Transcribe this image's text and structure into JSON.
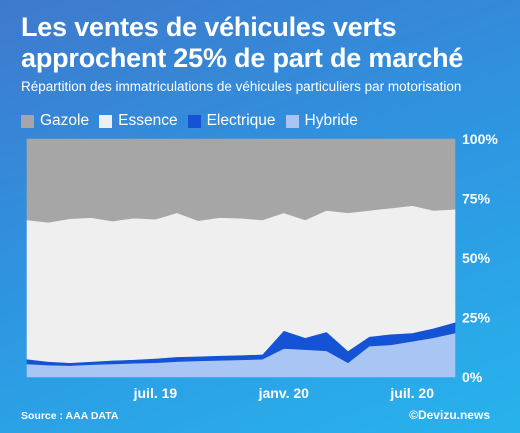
{
  "header": {
    "title_line1": "Les ventes de véhicules verts",
    "title_line2": "approchent 25% de part de marché",
    "subtitle": "Répartition des immatriculations de véhicules particuliers par motorisation"
  },
  "footer": {
    "source": "Source : AAA DATA",
    "credit": "©Devizu.news"
  },
  "colors": {
    "gazole": "#a6a6a6",
    "essence": "#efefef",
    "electrique": "#1452d6",
    "hybride": "#a9c5f3"
  },
  "chart_data": {
    "type": "area",
    "stacked": true,
    "title": "Les ventes de véhicules verts approchent 25% de part de marché",
    "subtitle": "Répartition des immatriculations de véhicules particuliers par motorisation",
    "x_tick_labels": [
      "juil. 19",
      "janv. 20",
      "juil. 20"
    ],
    "x_tick_index": [
      6,
      12,
      18
    ],
    "y_tick_labels": [
      "0%",
      "25%",
      "50%",
      "75%",
      "100%"
    ],
    "ylim": [
      0,
      100
    ],
    "y_axis_side": "right",
    "legend_position": "top",
    "grid": false,
    "x": [
      0,
      1,
      2,
      3,
      4,
      5,
      6,
      7,
      8,
      9,
      10,
      11,
      12,
      13,
      14,
      15,
      16,
      17,
      18,
      19,
      20
    ],
    "series": [
      {
        "name": "Hybride",
        "values": [
          5.5,
          5.0,
          4.8,
          5.2,
          5.5,
          5.8,
          6.0,
          6.5,
          6.8,
          7.0,
          7.2,
          7.5,
          12.0,
          11.5,
          11.0,
          6.0,
          13.0,
          13.5,
          15.0,
          16.5,
          18.5
        ]
      },
      {
        "name": "Electrique",
        "values": [
          2.0,
          1.5,
          1.2,
          1.3,
          1.5,
          1.5,
          1.8,
          2.0,
          1.9,
          2.0,
          2.0,
          2.0,
          7.5,
          5.0,
          8.0,
          5.0,
          4.0,
          4.5,
          3.5,
          4.0,
          4.5
        ]
      },
      {
        "name": "Essence",
        "values": [
          58.5,
          58.5,
          60.5,
          60.5,
          58.5,
          59.5,
          58.5,
          60.5,
          57.0,
          58.0,
          57.5,
          56.5,
          49.5,
          49.5,
          51.0,
          58.0,
          53.0,
          53.0,
          53.5,
          49.5,
          47.5
        ]
      },
      {
        "name": "Gazole",
        "values": [
          34.0,
          35.0,
          33.5,
          33.0,
          34.5,
          33.2,
          33.7,
          31.0,
          34.3,
          33.0,
          33.3,
          34.0,
          31.0,
          34.0,
          30.0,
          31.0,
          30.0,
          29.0,
          28.0,
          30.0,
          29.5
        ]
      }
    ]
  }
}
